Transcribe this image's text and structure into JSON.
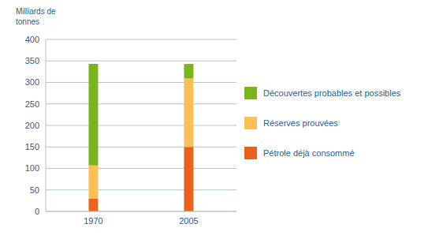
{
  "chart_data": {
    "type": "bar",
    "y_label": "Milliards de tonnes",
    "categories": [
      "1970",
      "2005"
    ],
    "series": [
      {
        "name": "Pétrole déjà consommé",
        "color": "#e8641e",
        "values": [
          30,
          150
        ]
      },
      {
        "name": "Réserves prouvées",
        "color": "#fbbf57",
        "values": [
          77,
          160
        ]
      },
      {
        "name": "Découvertes probables et possibles",
        "color": "#7ab51f",
        "values": [
          236,
          33
        ]
      }
    ],
    "stacked": true,
    "ylim": [
      0,
      400
    ],
    "yticks": [
      0,
      50,
      100,
      150,
      200,
      250,
      300,
      350,
      400
    ],
    "grid": true,
    "legend": "right"
  }
}
